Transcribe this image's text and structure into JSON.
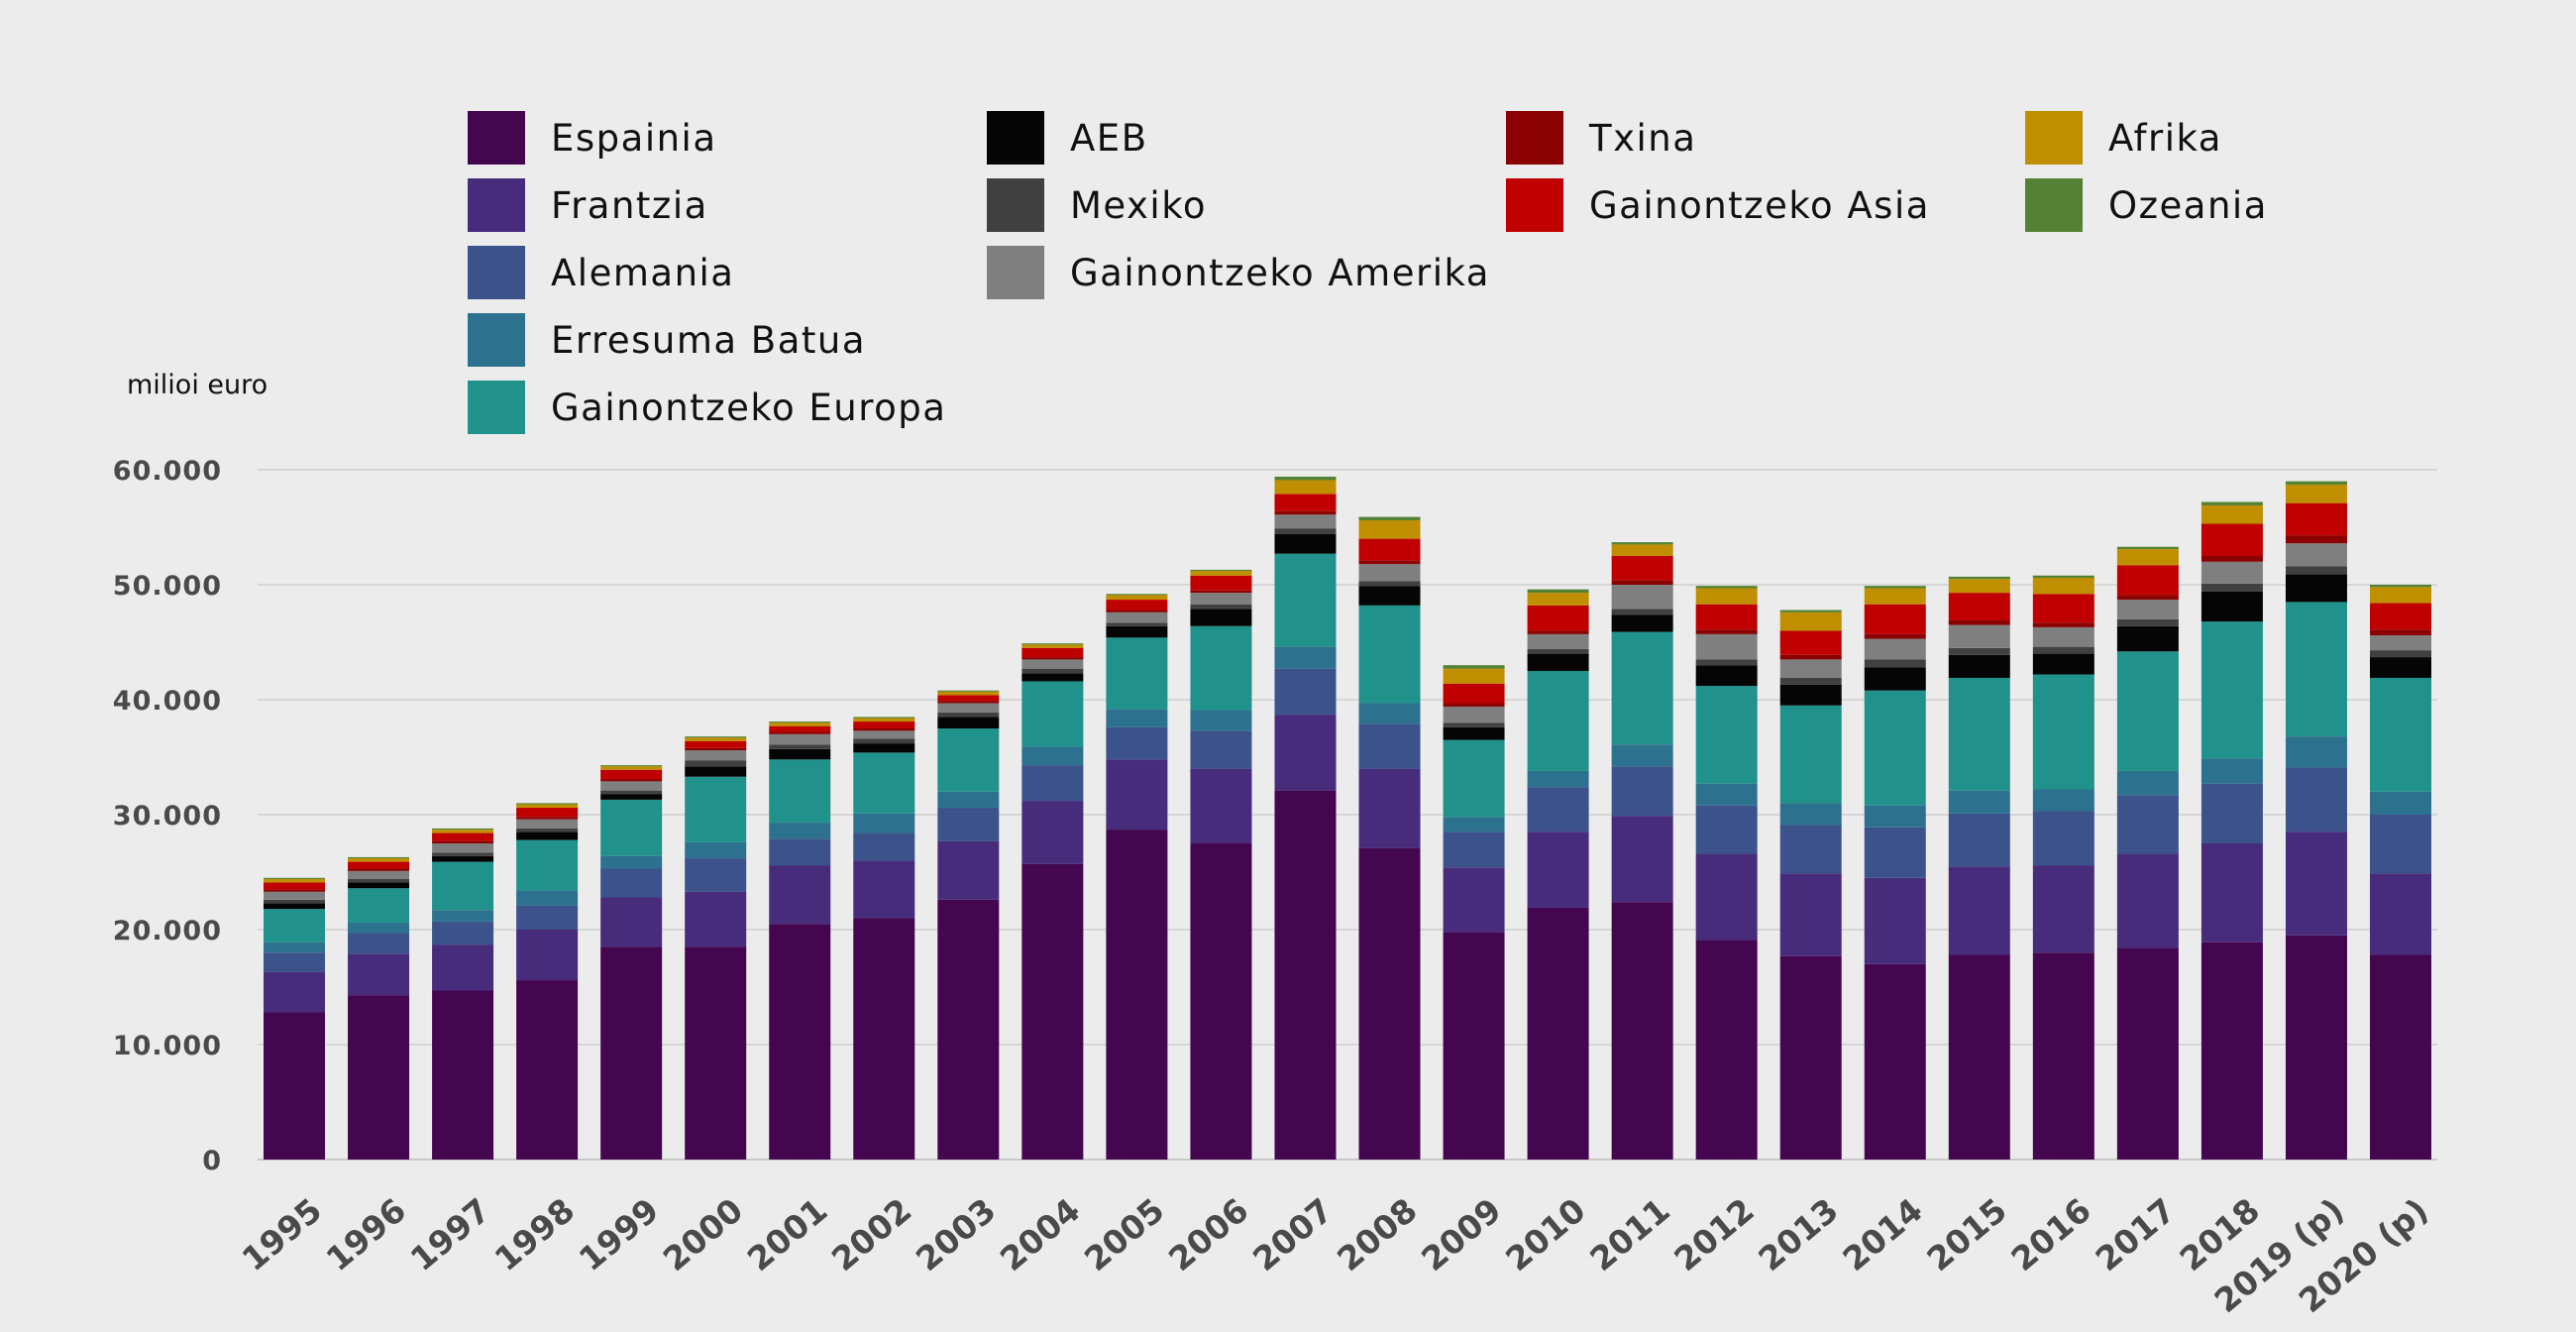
{
  "chart_data": {
    "type": "bar",
    "stacked": true,
    "unit_label": "milioi euro",
    "ylim": [
      0,
      60000
    ],
    "yticks": [
      0,
      10000,
      20000,
      30000,
      40000,
      50000,
      60000
    ],
    "ytick_labels": [
      "0",
      "10.000",
      "20.000",
      "30.000",
      "40.000",
      "50.000",
      "60.000"
    ],
    "grid": true,
    "legend_position": "top",
    "categories": [
      "1995",
      "1996",
      "1997",
      "1998",
      "1999",
      "2000",
      "2001",
      "2002",
      "2003",
      "2004",
      "2005",
      "2006",
      "2007",
      "2008",
      "2009",
      "2010",
      "2011",
      "2012",
      "2013",
      "2014",
      "2015",
      "2016",
      "2017",
      "2018",
      "2019 (p)",
      "2020 (p)"
    ],
    "series": [
      {
        "name": "Espainia",
        "color": "#43064f",
        "values": [
          12800,
          14300,
          14700,
          15600,
          18500,
          18500,
          20500,
          21000,
          22600,
          25700,
          28700,
          27500,
          32100,
          27100,
          19800,
          21900,
          22400,
          19100,
          17700,
          17000,
          17800,
          18000,
          18400,
          18900,
          19500,
          17800
        ]
      },
      {
        "name": "Frantzia",
        "color": "#472c7c",
        "values": [
          3500,
          3600,
          4000,
          4400,
          4300,
          4800,
          5100,
          5000,
          5100,
          5500,
          6100,
          6500,
          6600,
          6900,
          5600,
          6600,
          7500,
          7500,
          7200,
          7500,
          7700,
          7600,
          8200,
          8600,
          9000,
          7100
        ]
      },
      {
        "name": "Alemania",
        "color": "#3b528b",
        "values": [
          1700,
          1800,
          2000,
          2100,
          2500,
          2900,
          2300,
          2400,
          2900,
          3100,
          2800,
          3300,
          4000,
          3900,
          3100,
          3900,
          4300,
          4200,
          4200,
          4400,
          4600,
          4700,
          5100,
          5200,
          5600,
          5100
        ]
      },
      {
        "name": "Erresuma Batua",
        "color": "#2c728e",
        "values": [
          900,
          900,
          1000,
          1300,
          1100,
          1400,
          1400,
          1700,
          1400,
          1600,
          1600,
          1800,
          1900,
          1800,
          1300,
          1400,
          1900,
          1900,
          1900,
          1900,
          2000,
          1900,
          2100,
          2200,
          2700,
          2000
        ]
      },
      {
        "name": "Gainontzeko Europa",
        "color": "#21918c",
        "values": [
          2900,
          3000,
          4200,
          4400,
          4900,
          5700,
          5500,
          5300,
          5500,
          5700,
          6200,
          7300,
          8100,
          8500,
          6700,
          8700,
          9800,
          8500,
          8500,
          10000,
          9800,
          10000,
          10400,
          11900,
          11700,
          9900
        ]
      },
      {
        "name": "AEB",
        "color": "#050505",
        "values": [
          500,
          500,
          500,
          700,
          500,
          900,
          900,
          800,
          1000,
          700,
          1000,
          1500,
          1700,
          1700,
          1100,
          1500,
          1500,
          1800,
          1800,
          2000,
          2000,
          1800,
          2200,
          2600,
          2400,
          1800
        ]
      },
      {
        "name": "Mexiko",
        "color": "#404040",
        "values": [
          300,
          300,
          300,
          300,
          300,
          500,
          400,
          400,
          400,
          400,
          300,
          400,
          500,
          400,
          400,
          400,
          500,
          500,
          600,
          700,
          600,
          600,
          600,
          700,
          700,
          600
        ]
      },
      {
        "name": "Gainontzeko Amerika",
        "color": "#7f7f7f",
        "values": [
          700,
          700,
          800,
          800,
          800,
          900,
          900,
          700,
          800,
          800,
          900,
          1000,
          1200,
          1500,
          1400,
          1300,
          2100,
          2200,
          1600,
          1800,
          2000,
          1700,
          1700,
          1900,
          2000,
          1300
        ]
      },
      {
        "name": "Txina",
        "color": "#8b0000",
        "values": [
          200,
          200,
          200,
          200,
          200,
          200,
          200,
          200,
          200,
          200,
          200,
          200,
          300,
          300,
          300,
          300,
          400,
          400,
          400,
          400,
          400,
          400,
          400,
          500,
          700,
          500
        ]
      },
      {
        "name": "Gainontzeko Asia",
        "color": "#c00000",
        "values": [
          600,
          600,
          700,
          800,
          800,
          600,
          500,
          600,
          500,
          800,
          900,
          1300,
          1500,
          1900,
          1700,
          2200,
          2100,
          2200,
          2100,
          2600,
          2400,
          2500,
          2600,
          2800,
          2800,
          2300
        ]
      },
      {
        "name": "Afrika",
        "color": "#bf8f00",
        "values": [
          300,
          300,
          300,
          300,
          300,
          300,
          300,
          300,
          300,
          300,
          400,
          400,
          1200,
          1600,
          1300,
          1100,
          1000,
          1400,
          1600,
          1400,
          1200,
          1400,
          1400,
          1600,
          1600,
          1400
        ]
      },
      {
        "name": "Ozeania",
        "color": "#548235",
        "values": [
          100,
          100,
          100,
          100,
          100,
          100,
          100,
          100,
          100,
          100,
          100,
          100,
          300,
          300,
          300,
          300,
          200,
          200,
          200,
          200,
          200,
          200,
          200,
          300,
          300,
          200
        ]
      }
    ]
  }
}
